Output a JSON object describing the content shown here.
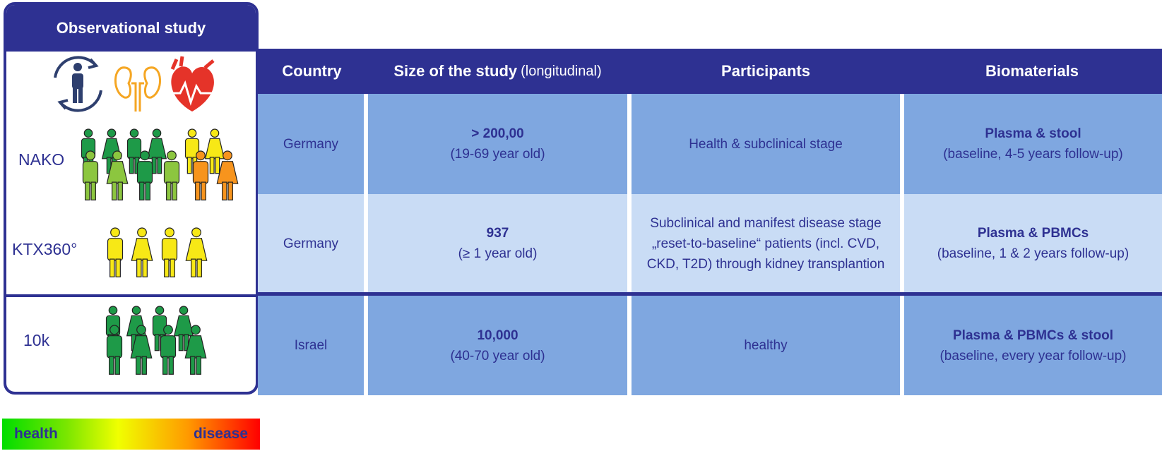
{
  "panel": {
    "title": "Observational study",
    "studies": [
      "NAKO",
      "KTX360°",
      "10k"
    ]
  },
  "table": {
    "headers": {
      "country": "Country",
      "size": "Size of the study",
      "size_note": "(longitudinal)",
      "participants": "Participants",
      "biomaterials": "Biomaterials"
    },
    "rows": [
      {
        "country": "Germany",
        "size": "> 200,00",
        "size_note": "(19-69 year old)",
        "participants": [
          "Health & subclinical stage"
        ],
        "biomaterials": "Plasma & stool",
        "biomaterials_note": "(baseline, 4-5 years follow-up)"
      },
      {
        "country": "Germany",
        "size": "937",
        "size_note": "(≥ 1 year old)",
        "participants": [
          "Subclinical and manifest disease stage",
          "„reset-to-baseline“ patients (incl. CVD,",
          "CKD, T2D) through kidney transplantion"
        ],
        "biomaterials": "Plasma & PBMCs",
        "biomaterials_note": "(baseline, 1 & 2 years follow-up)"
      },
      {
        "country": "Israel",
        "size": "10,000",
        "size_note": "(40-70 year old)",
        "participants": [
          "healthy"
        ],
        "biomaterials": "Plasma & PBMCs & stool",
        "biomaterials_note": "(baseline, every year follow-up)"
      }
    ]
  },
  "legend": {
    "left": "health",
    "right": "disease"
  }
}
